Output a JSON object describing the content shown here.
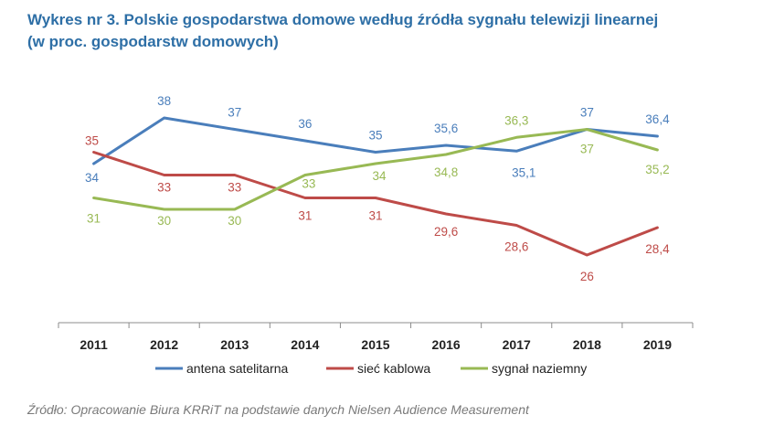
{
  "header": {
    "title_line1": "Wykres nr 3. Polskie gospodarstwa domowe według źródła sygnału telewizji linearnej",
    "title_line2": "(w proc. gospodarstw domowych)"
  },
  "chart_data": {
    "type": "line",
    "x": [
      "2011",
      "2012",
      "2013",
      "2014",
      "2015",
      "2016",
      "2017",
      "2018",
      "2019"
    ],
    "series": [
      {
        "name": "antena satelitarna",
        "color": "#4a7ebb",
        "values": [
          34,
          38,
          37,
          36,
          35,
          35.6,
          35.1,
          37,
          36.4
        ],
        "labels": [
          "34",
          "38",
          "37",
          "36",
          "35",
          "35,6",
          "35,1",
          "37",
          "36,4"
        ]
      },
      {
        "name": "sieć kablowa",
        "color": "#be4b48",
        "values": [
          35,
          33,
          33,
          31,
          31,
          29.6,
          28.6,
          26,
          28.4
        ],
        "labels": [
          "35",
          "33",
          "33",
          "31",
          "31",
          "29,6",
          "28,6",
          "26",
          "28,4"
        ]
      },
      {
        "name": "sygnał naziemny",
        "color": "#98b954",
        "values": [
          31,
          30,
          30,
          33,
          34,
          34.8,
          36.3,
          37,
          35.2
        ],
        "labels": [
          "31",
          "30",
          "30",
          "33",
          "34",
          "34,8",
          "36,3",
          "37",
          "35,2"
        ]
      }
    ],
    "grid": false,
    "legend_position": "bottom"
  },
  "footer": {
    "source": "Źródło: Opracowanie Biura KRRiT na podstawie danych Nielsen Audience Measurement"
  }
}
